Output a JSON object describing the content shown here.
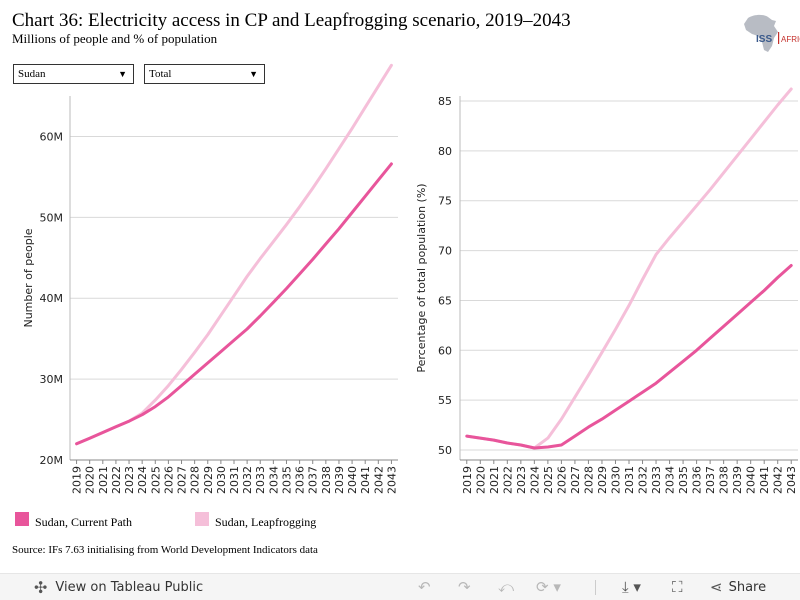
{
  "header": {
    "title": "Chart 36: Electricity access in CP and Leapfrogging scenario, 2019–2043",
    "subtitle": "Millions of people and % of population",
    "logo_text": "ISS",
    "logo_text2": "AFRICA"
  },
  "filters": {
    "country": "Sudan",
    "measure": "Total"
  },
  "colors": {
    "current_path": "#e8559b",
    "leapfrogging": "#f5bfd9",
    "grid": "#d9d9d9",
    "axis": "#444444"
  },
  "chart_data": [
    {
      "type": "line",
      "ylabel": "Number of people",
      "ylim": [
        20,
        65
      ],
      "yticks": [
        20,
        30,
        40,
        50,
        60
      ],
      "ytick_labels": [
        "20M",
        "30M",
        "40M",
        "50M",
        "60M"
      ],
      "x": [
        "2019",
        "2020",
        "2021",
        "2022",
        "2023",
        "2024",
        "2025",
        "2026",
        "2027",
        "2028",
        "2029",
        "2030",
        "2031",
        "2032",
        "2033",
        "2034",
        "2035",
        "2036",
        "2037",
        "2038",
        "2039",
        "2040",
        "2041",
        "2042",
        "2043"
      ],
      "series": [
        {
          "name": "Sudan, Current Path",
          "color": "#e8559b",
          "values": [
            22.0,
            22.7,
            23.4,
            24.1,
            24.8,
            25.6,
            26.6,
            27.8,
            29.2,
            30.6,
            32.0,
            33.4,
            34.8,
            36.2,
            37.8,
            39.5,
            41.2,
            43.0,
            44.8,
            46.7,
            48.6,
            50.6,
            52.6,
            54.6,
            56.6
          ]
        },
        {
          "name": "Sudan, Leapfrogging",
          "color": "#f5bfd9",
          "values": [
            22.0,
            22.7,
            23.4,
            24.1,
            24.8,
            25.8,
            27.4,
            29.2,
            31.2,
            33.3,
            35.5,
            37.9,
            40.3,
            42.7,
            44.9,
            47.0,
            49.1,
            51.3,
            53.6,
            56.0,
            58.5,
            61.0,
            63.6,
            66.2,
            68.8
          ]
        }
      ]
    },
    {
      "type": "line",
      "ylabel": "Percentage of total population (%)",
      "ylim": [
        49,
        85.5
      ],
      "yticks": [
        50,
        55,
        60,
        65,
        70,
        75,
        80,
        85
      ],
      "ytick_labels": [
        "50",
        "55",
        "60",
        "65",
        "70",
        "75",
        "80",
        "85"
      ],
      "x": [
        "2019",
        "2020",
        "2021",
        "2022",
        "2023",
        "2024",
        "2025",
        "2026",
        "2027",
        "2028",
        "2029",
        "2030",
        "2031",
        "2032",
        "2033",
        "2034",
        "2035",
        "2036",
        "2037",
        "2038",
        "2039",
        "2040",
        "2041",
        "2042",
        "2043"
      ],
      "series": [
        {
          "name": "Sudan, Current Path",
          "color": "#e8559b",
          "values": [
            51.4,
            51.2,
            51.0,
            50.7,
            50.5,
            50.2,
            50.3,
            50.5,
            51.4,
            52.3,
            53.1,
            54.0,
            54.9,
            55.8,
            56.7,
            57.8,
            58.9,
            60.0,
            61.2,
            62.4,
            63.6,
            64.8,
            66.0,
            67.3,
            68.5
          ]
        },
        {
          "name": "Sudan, Leapfrogging",
          "color": "#f5bfd9",
          "values": [
            51.4,
            51.2,
            51.0,
            50.7,
            50.5,
            50.2,
            51.2,
            53.1,
            55.3,
            57.5,
            59.8,
            62.1,
            64.5,
            67.1,
            69.6,
            71.3,
            72.9,
            74.5,
            76.1,
            77.8,
            79.5,
            81.2,
            82.9,
            84.6,
            86.2
          ]
        }
      ]
    }
  ],
  "legend": {
    "current_path": "Sudan, Current Path",
    "leapfrogging": "Sudan, Leapfrogging"
  },
  "source": "Source: IFs 7.63 initialising from World Development Indicators data",
  "toolbar": {
    "view_label": "View on Tableau Public",
    "share_label": "Share",
    "icons": [
      "tableau-icon",
      "undo-icon",
      "redo-icon",
      "revert-icon",
      "refresh-icon",
      "download-icon",
      "fullscreen-icon",
      "share-icon"
    ]
  }
}
